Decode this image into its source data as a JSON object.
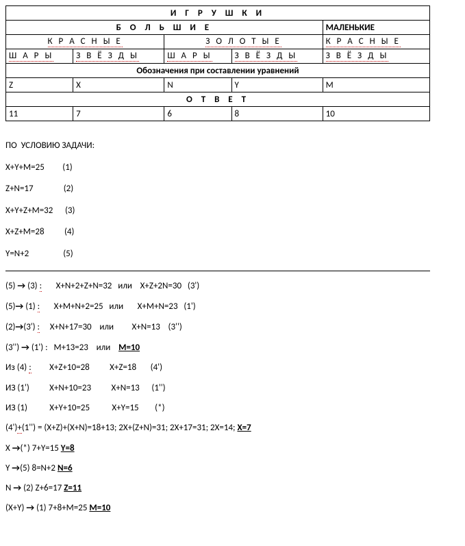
{
  "table": {
    "r1": "И Г Р У Ш К И",
    "r2a": "Б О Л Ь Ш И Е",
    "r2b": "МАЛЕНЬКИЕ",
    "r3a": "К Р А С Н Ы Е",
    "r3b": "З О Л О Т Ы Е",
    "r3c": "К Р А С Н Ы Е",
    "r4a": "Ш А Р Ы",
    "r4b": "З В Ё З Д Ы",
    "r4c": "Ш А Р Ы",
    "r4d": "З В Ё З Д Ы",
    "r4e": "З В Ё З Д Ы",
    "r5": "Обозначения  при  составлении  уравнений",
    "r6a": "Z",
    "r6b": "X",
    "r6c": "N",
    "r6d": "Y",
    "r6e": "M",
    "r7": "О Т В Е Т",
    "r8a": "11",
    "r8b": "7",
    "r8c": "6",
    "r8d": "8",
    "r8e": "10"
  },
  "cond_title": "ПО  УСЛОВИЮ ЗАДАЧИ:",
  "eq1": "X+Y+M=25         (1)",
  "eq2": "Z+N=17               (2)",
  "eq3": "X+Y+Z+M=32      (3)",
  "eq4": "X+Z+M=28          (4)",
  "eq5": "Y=N+2                 (5)",
  "s": {
    "l1a": "(5) ",
    "l1b": " (3) ",
    "l1c": ":",
    "l1d": "       X+N+2+Z+N=32   или    X+Z+2N=30   (3')",
    "l2a": "(5)",
    "l2b": " (1) ",
    "l2c": ":",
    "l2d": "       X+M+N+2=25   или       X+M+N=23   (1')",
    "l3a": "(2)",
    "l3b": "(3') ",
    "l3c": ":",
    "l3d": "     X+N+17=30    или         X+N=13    (3'')",
    "l4a": "(3'') ",
    "l4b": " (1')",
    "l4c": " :   M+13=23    или    ",
    "l4d": "M=10",
    "l5a": "Из (4) ",
    "l5c": ":",
    "l5d": "         X+Z+10=28          X+Z=18       (4')",
    "l6a": "ИЗ (1')          X+N+10=23          X+N=13      (1'')",
    "l7a": "ИЗ (1)           X+Y+10=25           X+Y=15        (*)",
    "l8a": "(4')",
    "l8b": "+",
    "l8c": "(1'') = (X+Z)+(X+N)=18+13;   2X+(Z+N)=31;   2X+17=31;   2X=14;  ",
    "l8d": "X=7",
    "l9a": "X ",
    "l9b": "(*)   7+Y=15   ",
    "l9c": "Y=8",
    "l10a": "Y ",
    "l10b": "(5)    8=N+2   ",
    "l10c": "N=6",
    "l11a": "N ",
    "l11b": "  (2)   Z+6=17   ",
    "l11c": "Z=11",
    "l12a": "(X+Y) ",
    "l12b": " (1)    7+8+M=25    ",
    "l12c": "M=10"
  },
  "arrow": "→"
}
